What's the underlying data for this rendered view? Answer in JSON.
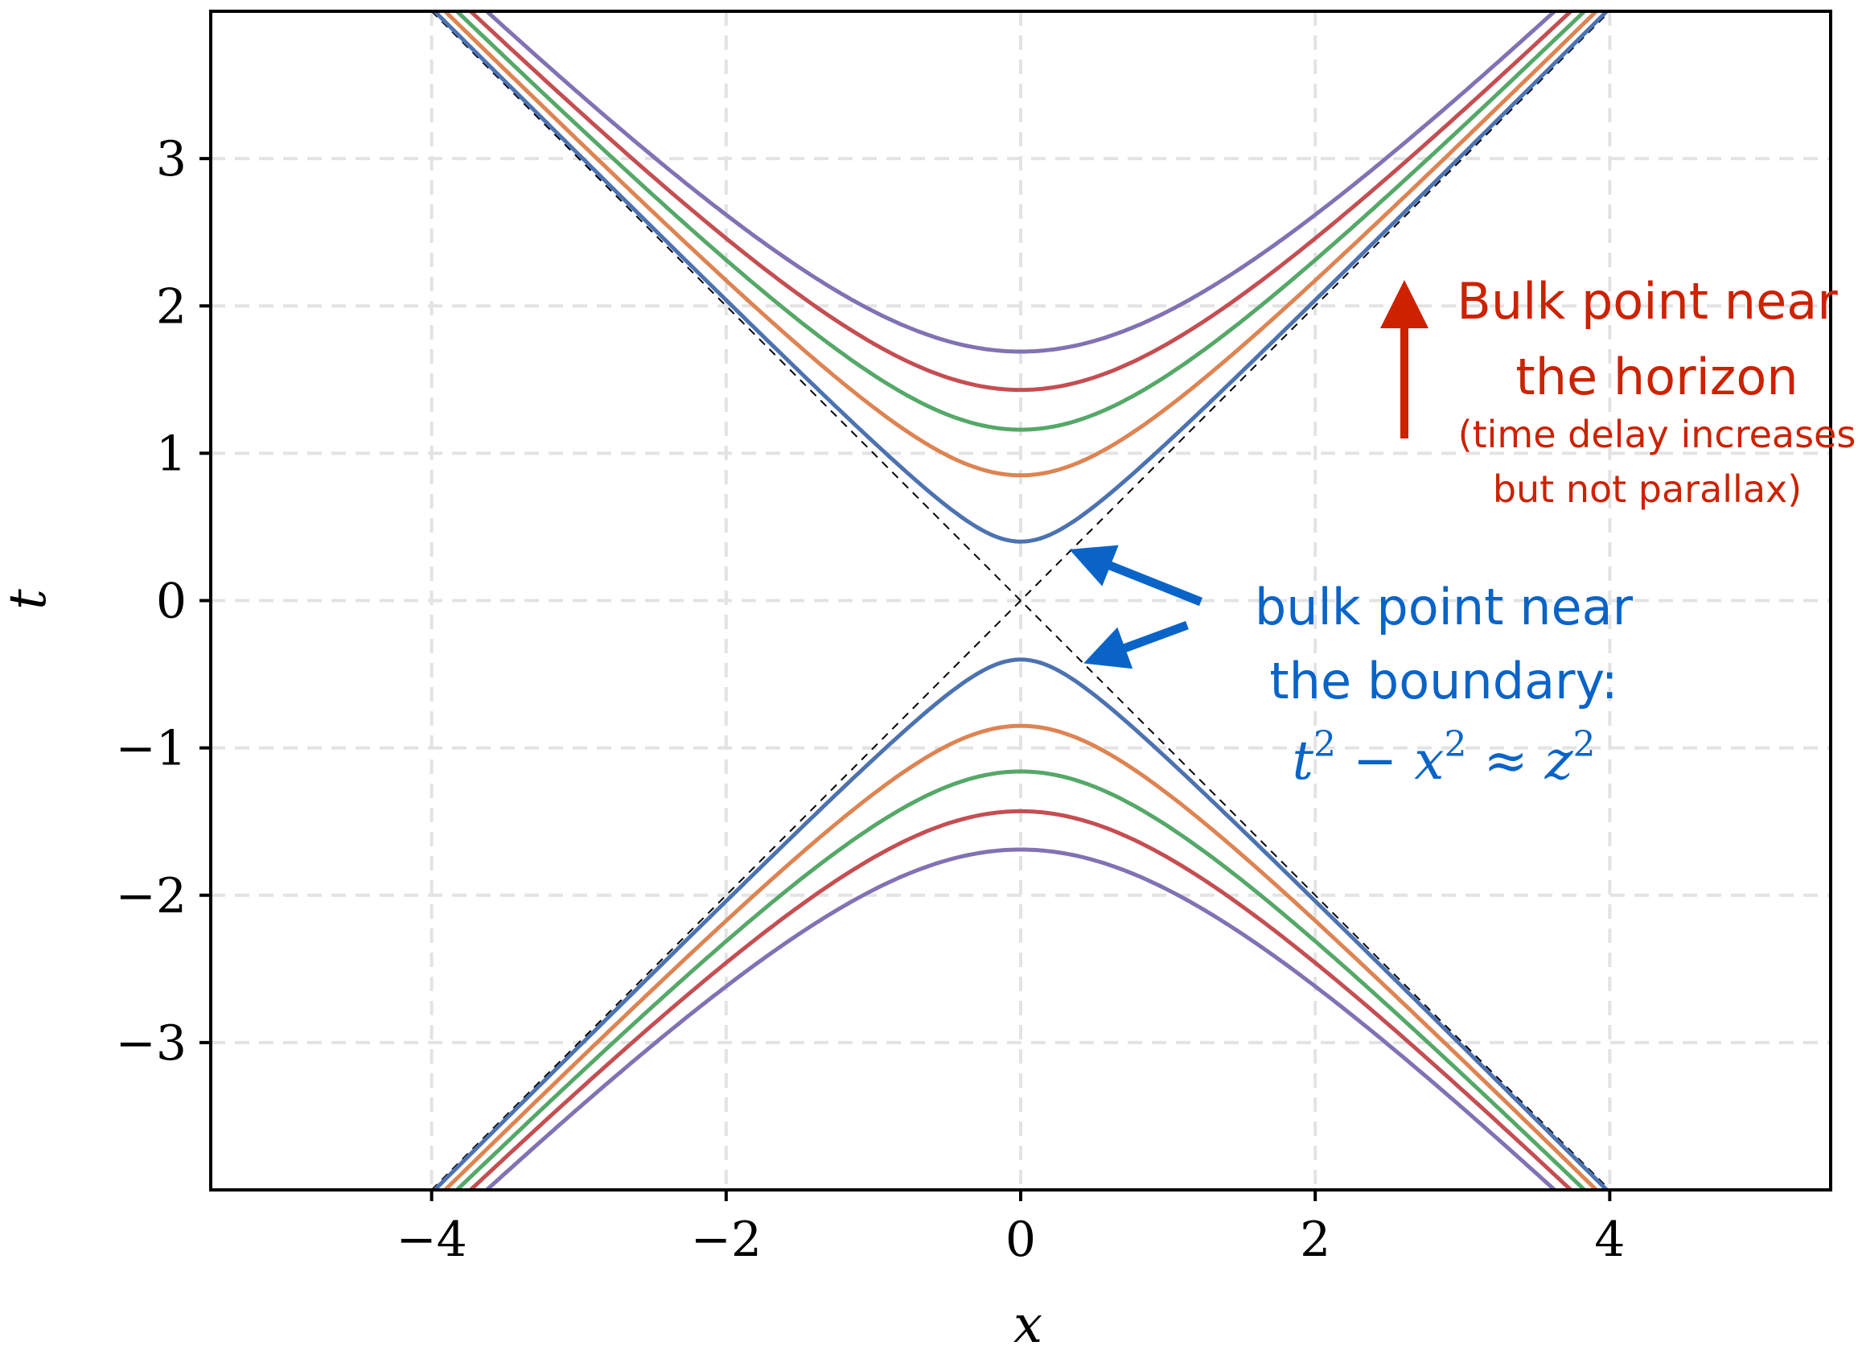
{
  "chart_data": {
    "type": "line",
    "xlabel": "x",
    "ylabel": "t",
    "xlim": [
      -5.5,
      5.5
    ],
    "ylim": [
      -4,
      4
    ],
    "x_ticks": [
      -4,
      -2,
      0,
      2,
      4
    ],
    "y_ticks": [
      -3,
      -2,
      -1,
      0,
      1,
      2,
      3
    ],
    "x_tick_labels": [
      "−4",
      "−2",
      "0",
      "2",
      "4"
    ],
    "y_tick_labels": [
      "−3",
      "−2",
      "−1",
      "0",
      "1",
      "2",
      "3"
    ],
    "grid": true,
    "grid_style": "dashed",
    "asymptotes": [
      {
        "x": [
          -4,
          4
        ],
        "y": [
          -4,
          4
        ],
        "style": "dashed",
        "color": "#000000"
      },
      {
        "x": [
          -4,
          4
        ],
        "y": [
          4,
          -4
        ],
        "style": "dashed",
        "color": "#000000"
      }
    ],
    "series": [
      {
        "z": 0.4,
        "color": "#4c72b0",
        "relation": "t^2 - x^2 = z^2",
        "branches": [
          "upper",
          "lower"
        ]
      },
      {
        "z": 0.85,
        "color": "#dd8452",
        "relation": "t^2 - x^2 = z^2",
        "branches": [
          "upper",
          "lower"
        ]
      },
      {
        "z": 1.16,
        "color": "#55a868",
        "relation": "t^2 - x^2 = z^2",
        "branches": [
          "upper",
          "lower"
        ]
      },
      {
        "z": 1.43,
        "color": "#c44e52",
        "relation": "t^2 - x^2 = z^2",
        "branches": [
          "upper",
          "lower"
        ]
      },
      {
        "z": 1.69,
        "color": "#8172b3",
        "relation": "t^2 - x^2 = z^2",
        "branches": [
          "upper",
          "lower"
        ]
      }
    ],
    "annotations": {
      "horizon": {
        "line1": "Bulk point near",
        "line2": "the horizon",
        "line3": "(time delay increases",
        "line4": "but not parallax)",
        "color": "#cc2200",
        "arrow": "up"
      },
      "boundary": {
        "line1": "bulk point near",
        "line2": "the boundary:",
        "formula": {
          "t": "t",
          "x": "x",
          "z": "z",
          "exp": "2",
          "minus": " − ",
          "approx": " ≈ "
        },
        "color": "#0a64c8",
        "arrows": [
          "upper-branch",
          "lower-branch"
        ]
      }
    }
  }
}
